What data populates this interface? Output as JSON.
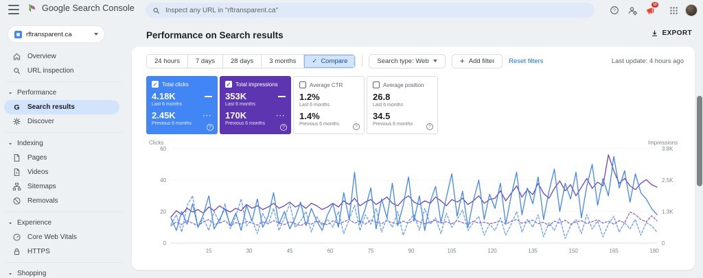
{
  "topbar": {
    "app_title": "Google Search Console",
    "search_placeholder": "Inspect any URL in \"rftransparent.ca\"",
    "notifications_badge": "10"
  },
  "property": {
    "name": "rftransparent.ca"
  },
  "sidebar": {
    "items": [
      {
        "type": "item",
        "icon": "home",
        "label": "Overview"
      },
      {
        "type": "item",
        "icon": "search",
        "label": "URL inspection"
      },
      {
        "type": "divider"
      },
      {
        "type": "section",
        "label": "Performance"
      },
      {
        "type": "item",
        "icon": "g",
        "label": "Search results",
        "active": true
      },
      {
        "type": "item",
        "icon": "discover",
        "label": "Discover"
      },
      {
        "type": "divider"
      },
      {
        "type": "section",
        "label": "Indexing"
      },
      {
        "type": "item",
        "icon": "pages",
        "label": "Pages"
      },
      {
        "type": "item",
        "icon": "video",
        "label": "Videos"
      },
      {
        "type": "item",
        "icon": "sitemap",
        "label": "Sitemaps"
      },
      {
        "type": "item",
        "icon": "removals",
        "label": "Removals"
      },
      {
        "type": "divider"
      },
      {
        "type": "section",
        "label": "Experience"
      },
      {
        "type": "item",
        "icon": "cwv",
        "label": "Core Web Vitals"
      },
      {
        "type": "item",
        "icon": "lock",
        "label": "HTTPS"
      },
      {
        "type": "divider"
      },
      {
        "type": "section",
        "label": "Shopping"
      }
    ]
  },
  "header": {
    "title": "Performance on Search results",
    "export_label": "EXPORT"
  },
  "filters": {
    "date_ranges": [
      "24 hours",
      "7 days",
      "28 days",
      "3 months"
    ],
    "compare_label": "Compare",
    "search_type_label": "Search type: Web",
    "add_filter_label": "Add filter",
    "reset_label": "Reset filters",
    "last_update": "Last update: 4 hours ago"
  },
  "cards": [
    {
      "label": "Total clicks",
      "checked": true,
      "bg": "#4285f4",
      "primary": "4.18K",
      "primary_caption": "Last 6 months",
      "secondary": "2.45K",
      "secondary_caption": "Previous 6 months"
    },
    {
      "label": "Total impressions",
      "checked": true,
      "bg": "#5e35b1",
      "primary": "353K",
      "primary_caption": "Last 6 months",
      "secondary": "170K",
      "secondary_caption": "Previous 6 months"
    },
    {
      "label": "Average CTR",
      "checked": false,
      "bg": "",
      "primary": "1.2%",
      "primary_caption": "Last 6 months",
      "secondary": "1.4%",
      "secondary_caption": "Previous 6 months"
    },
    {
      "label": "Average position",
      "checked": false,
      "bg": "",
      "primary": "26.8",
      "primary_caption": "Last 6 months",
      "secondary": "34.5",
      "secondary_caption": "Previous 6 months"
    }
  ],
  "chart_data": {
    "type": "line",
    "left_axis": {
      "label": "Clicks",
      "ticks": [
        60,
        40,
        20,
        0
      ],
      "max": 60
    },
    "right_axis": {
      "label": "Impressions",
      "tick_labels": [
        "3.8K",
        "2.5K",
        "1.3K",
        "0"
      ],
      "max": 3800
    },
    "x_ticks": [
      15,
      30,
      45,
      60,
      75,
      90,
      105,
      120,
      135,
      150,
      165,
      180
    ],
    "x_range": [
      1,
      181
    ],
    "x_start": 1,
    "x_step": 2,
    "series": [
      {
        "name": "Impressions - Previous 6 months",
        "axis": "right",
        "style": "dashed",
        "color": "#8a63c9",
        "values": [
          700,
          850,
          750,
          900,
          800,
          700,
          850,
          950,
          750,
          800,
          900,
          700,
          820,
          760,
          880,
          800,
          720,
          850,
          780,
          900,
          820,
          740,
          860,
          780,
          700,
          830,
          760,
          880,
          800,
          740,
          900,
          780,
          850,
          950,
          800,
          880,
          760,
          920,
          840,
          780,
          900,
          820,
          760,
          880,
          800,
          940,
          860,
          780,
          840,
          920,
          800,
          860,
          780,
          900,
          820,
          760,
          880,
          800,
          840,
          780,
          820,
          900,
          760,
          880,
          950,
          800,
          860,
          920,
          780,
          840,
          700,
          880,
          800,
          920,
          760,
          850,
          900,
          780,
          860,
          940,
          800,
          880,
          760,
          900,
          820,
          1250,
          1150,
          950,
          850,
          1100,
          900
        ]
      },
      {
        "name": "Clicks - Previous 6 months",
        "axis": "left",
        "style": "dashed",
        "color": "#669df6",
        "values": [
          12,
          18,
          7,
          24,
          30,
          10,
          16,
          8,
          20,
          13,
          25,
          9,
          17,
          28,
          11,
          15,
          6,
          19,
          12,
          22,
          8,
          16,
          25,
          10,
          14,
          20,
          7,
          17,
          11,
          15,
          10,
          20,
          6,
          15,
          24,
          8,
          18,
          12,
          22,
          7,
          16,
          10,
          20,
          5,
          14,
          18,
          8,
          22,
          12,
          16,
          6,
          19,
          10,
          15,
          21,
          8,
          13,
          17,
          5,
          12,
          8,
          16,
          5,
          12,
          20,
          7,
          15,
          10,
          18,
          4,
          13,
          8,
          16,
          3,
          11,
          15,
          6,
          18,
          9,
          14,
          4,
          12,
          17,
          7,
          13,
          9,
          15,
          5,
          13,
          11,
          7
        ]
      },
      {
        "name": "Impressions - Last 6 months",
        "axis": "right",
        "style": "solid",
        "color": "#6f42b3",
        "values": [
          1050,
          1300,
          1150,
          1400,
          1250,
          1350,
          1200,
          1450,
          1300,
          1500,
          1350,
          1250,
          1400,
          1300,
          1550,
          1400,
          1500,
          1350,
          1450,
          1600,
          1400,
          1500,
          1650,
          1450,
          1550,
          1400,
          1600,
          1500,
          1350,
          1450,
          1600,
          1450,
          1700,
          1550,
          1800,
          1500,
          1650,
          1750,
          1550,
          1700,
          1850,
          1600,
          1500,
          1750,
          1900,
          1650,
          1550,
          1700,
          1600,
          1850,
          1700,
          1500,
          1750,
          1650,
          1800,
          1550,
          1700,
          1900,
          1600,
          1750,
          1800,
          2100,
          1700,
          2000,
          2300,
          1850,
          2150,
          1950,
          2400,
          2000,
          1800,
          2200,
          2500,
          2100,
          2350,
          1900,
          2250,
          2600,
          2200,
          2450,
          2300,
          3550,
          2900,
          2400,
          2600,
          2300,
          2150,
          2400,
          2550,
          2350,
          2250
        ]
      },
      {
        "name": "Clicks - Last 6 months",
        "axis": "left",
        "style": "solid",
        "color": "#4285f4",
        "values": [
          16,
          8,
          20,
          12,
          25,
          10,
          18,
          30,
          9,
          15,
          22,
          11,
          19,
          8,
          24,
          14,
          28,
          10,
          17,
          32,
          12,
          20,
          9,
          16,
          26,
          11,
          22,
          14,
          8,
          18,
          25,
          10,
          32,
          15,
          45,
          12,
          22,
          35,
          9,
          28,
          16,
          38,
          11,
          24,
          42,
          14,
          30,
          8,
          26,
          36,
          13,
          29,
          44,
          17,
          33,
          10,
          27,
          40,
          15,
          31,
          22,
          38,
          12,
          30,
          45,
          18,
          35,
          25,
          42,
          15,
          33,
          47,
          20,
          38,
          28,
          45,
          16,
          36,
          50,
          24,
          41,
          30,
          55,
          35,
          46,
          26,
          44,
          32,
          28,
          22,
          18
        ]
      }
    ]
  }
}
